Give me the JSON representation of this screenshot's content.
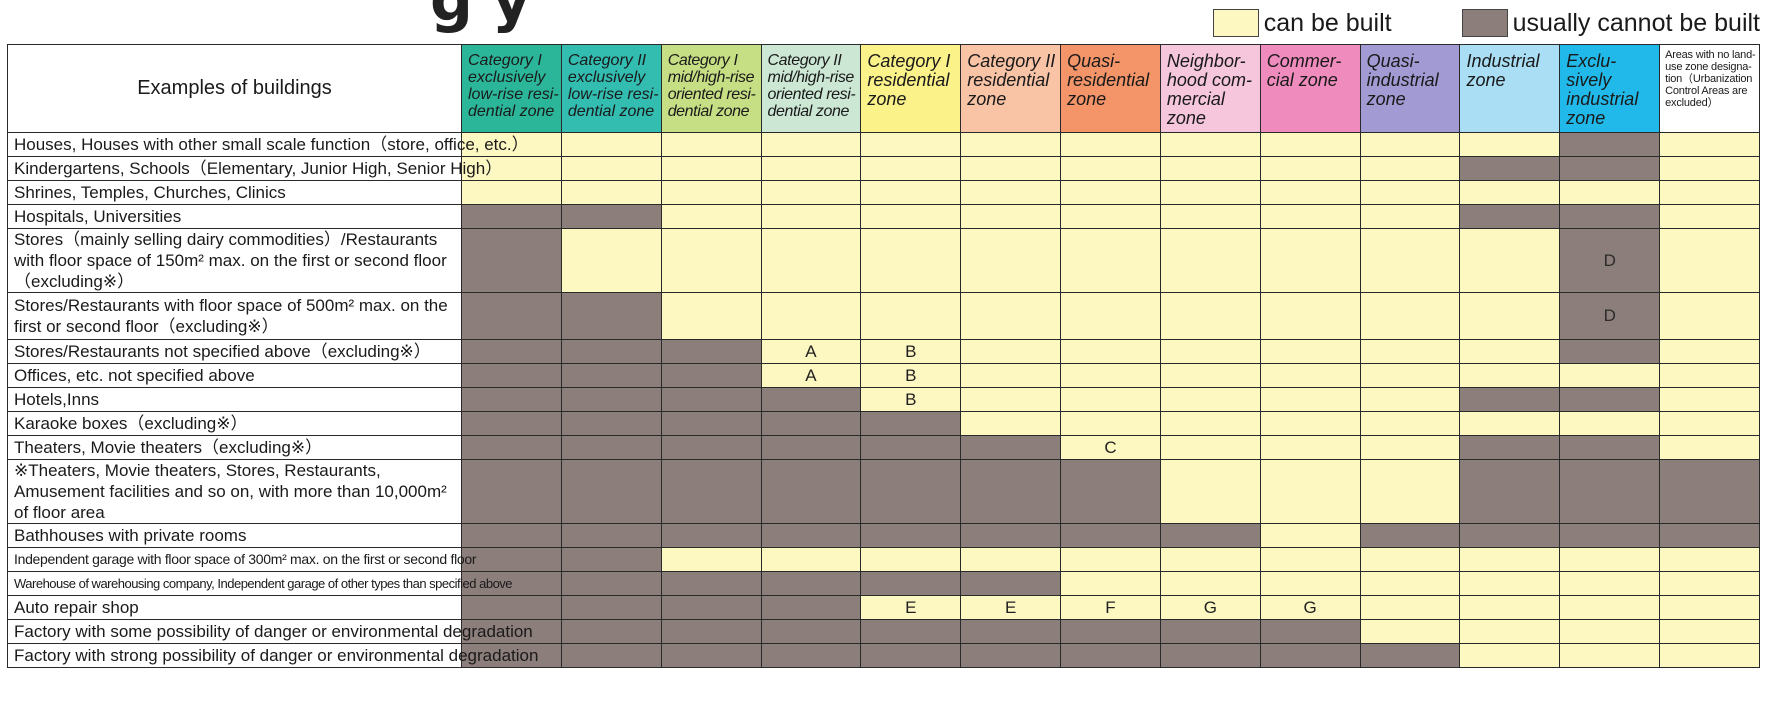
{
  "title_fragment": "g   y",
  "legend": [
    {
      "label": "can be built",
      "color": "#fdf7c1"
    },
    {
      "label": "usually cannot be built",
      "color": "#8c7e7a"
    }
  ],
  "chart_data": {
    "type": "table",
    "row_header": "Examples of buildings",
    "columns": [
      {
        "name": "Category I exclusively low-rise residential zone",
        "lines": [
          "Category I",
          "exclusively",
          "low-rise resi-",
          "dential zone"
        ],
        "color": "#2bb69a",
        "style": "normal"
      },
      {
        "name": "Category II exclusively low-rise residential zone",
        "lines": [
          "Category II",
          "exclusively",
          "low-rise resi-",
          "dential zone"
        ],
        "color": "#33bcb0",
        "style": "normal"
      },
      {
        "name": "Category I mid/high-rise oriented residential zone",
        "lines": [
          "Category I",
          "mid/high-rise",
          "oriented resi-",
          "dential zone"
        ],
        "color": "#c7df84",
        "style": "condensed"
      },
      {
        "name": "Category II mid/high-rise oriented residential zone",
        "lines": [
          "Category II",
          "mid/high-rise",
          "oriented resi-",
          "dential zone"
        ],
        "color": "#cce8d5",
        "style": "condensed"
      },
      {
        "name": "Category I residential zone",
        "lines": [
          "Category I",
          "residential",
          "zone"
        ],
        "color": "#fbf28a",
        "style": "large"
      },
      {
        "name": "Category II residential zone",
        "lines": [
          "Category II",
          "residential",
          "zone"
        ],
        "color": "#f9c3a6",
        "style": "large"
      },
      {
        "name": "Quasi-residential zone",
        "lines": [
          "Quasi-",
          "residential",
          "zone"
        ],
        "color": "#f39469",
        "style": "large"
      },
      {
        "name": "Neighborhood commercial zone",
        "lines": [
          "Neighbor-",
          "hood com-",
          "mercial",
          "zone"
        ],
        "color": "#f5c6dc",
        "style": "large"
      },
      {
        "name": "Commercial zone",
        "lines": [
          "Commer-",
          "cial zone"
        ],
        "color": "#ef8cbd",
        "style": "large"
      },
      {
        "name": "Quasi-industrial zone",
        "lines": [
          "Quasi-",
          "industrial",
          "zone"
        ],
        "color": "#a29ad2",
        "style": "large"
      },
      {
        "name": "Industrial zone",
        "lines": [
          "Industrial",
          "zone"
        ],
        "color": "#a9def5",
        "style": "large"
      },
      {
        "name": "Exclusively industrial zone",
        "lines": [
          "Exclu-",
          "sively",
          "industrial",
          "zone"
        ],
        "color": "#21b9ea",
        "style": "large"
      },
      {
        "name": "Areas with no land-use zone designation (Urbanization Control Areas are excluded)",
        "lines": [
          "Areas with no land-",
          "use zone designa-",
          "tion（Urbanization",
          "Control Areas are",
          "excluded）"
        ],
        "color": "#ffffff",
        "style": "tiny"
      }
    ],
    "rows": [
      {
        "label": "Houses, Houses with other small scale function（store, office, etc.）",
        "height": 24,
        "style": "normal",
        "status": [
          1,
          1,
          1,
          1,
          1,
          1,
          1,
          1,
          1,
          1,
          1,
          0,
          1
        ],
        "marks": [
          "",
          "",
          "",
          "",
          "",
          "",
          "",
          "",
          "",
          "",
          "",
          "",
          ""
        ]
      },
      {
        "label": "Kindergartens, Schools（Elementary, Junior High, Senior High）",
        "height": 24,
        "style": "normal",
        "status": [
          1,
          1,
          1,
          1,
          1,
          1,
          1,
          1,
          1,
          1,
          0,
          0,
          1
        ],
        "marks": [
          "",
          "",
          "",
          "",
          "",
          "",
          "",
          "",
          "",
          "",
          "",
          "",
          ""
        ]
      },
      {
        "label": "Shrines, Temples, Churches, Clinics",
        "height": 24,
        "style": "normal",
        "status": [
          1,
          1,
          1,
          1,
          1,
          1,
          1,
          1,
          1,
          1,
          1,
          1,
          1
        ],
        "marks": [
          "",
          "",
          "",
          "",
          "",
          "",
          "",
          "",
          "",
          "",
          "",
          "",
          ""
        ]
      },
      {
        "label": "Hospitals, Universities",
        "height": 24,
        "style": "normal",
        "status": [
          0,
          0,
          1,
          1,
          1,
          1,
          1,
          1,
          1,
          1,
          0,
          0,
          1
        ],
        "marks": [
          "",
          "",
          "",
          "",
          "",
          "",
          "",
          "",
          "",
          "",
          "",
          "",
          ""
        ]
      },
      {
        "label": "Stores（mainly selling dairy commodities）/Restaurants with floor space of 150m² max. on the first or second floor（excluding※）",
        "height": 47,
        "style": "wrap",
        "status": [
          0,
          1,
          1,
          1,
          1,
          1,
          1,
          1,
          1,
          1,
          1,
          0,
          1
        ],
        "marks": [
          "",
          "",
          "",
          "",
          "",
          "",
          "",
          "",
          "",
          "",
          "",
          "D",
          ""
        ]
      },
      {
        "label": "Stores/Restaurants with floor space of 500m² max. on the first or second floor（excluding※）",
        "height": 47,
        "style": "wrap",
        "status": [
          0,
          0,
          1,
          1,
          1,
          1,
          1,
          1,
          1,
          1,
          1,
          0,
          1
        ],
        "marks": [
          "",
          "",
          "",
          "",
          "",
          "",
          "",
          "",
          "",
          "",
          "",
          "D",
          ""
        ]
      },
      {
        "label": "Stores/Restaurants not specified above（excluding※）",
        "height": 24,
        "style": "normal",
        "status": [
          0,
          0,
          0,
          1,
          1,
          1,
          1,
          1,
          1,
          1,
          1,
          0,
          1
        ],
        "marks": [
          "",
          "",
          "",
          "A",
          "B",
          "",
          "",
          "",
          "",
          "",
          "",
          "",
          ""
        ]
      },
      {
        "label": "Offices, etc. not specified above",
        "height": 24,
        "style": "normal",
        "status": [
          0,
          0,
          0,
          1,
          1,
          1,
          1,
          1,
          1,
          1,
          1,
          1,
          1
        ],
        "marks": [
          "",
          "",
          "",
          "A",
          "B",
          "",
          "",
          "",
          "",
          "",
          "",
          "",
          ""
        ]
      },
      {
        "label": "Hotels,Inns",
        "height": 24,
        "style": "normal",
        "status": [
          0,
          0,
          0,
          0,
          1,
          1,
          1,
          1,
          1,
          1,
          0,
          0,
          1
        ],
        "marks": [
          "",
          "",
          "",
          "",
          "B",
          "",
          "",
          "",
          "",
          "",
          "",
          "",
          ""
        ]
      },
      {
        "label": "Karaoke boxes（excluding※）",
        "height": 24,
        "style": "normal",
        "status": [
          0,
          0,
          0,
          0,
          0,
          1,
          1,
          1,
          1,
          1,
          1,
          1,
          1
        ],
        "marks": [
          "",
          "",
          "",
          "",
          "",
          "",
          "",
          "",
          "",
          "",
          "",
          "",
          ""
        ]
      },
      {
        "label": "Theaters, Movie theaters（excluding※）",
        "height": 24,
        "style": "normal",
        "status": [
          0,
          0,
          0,
          0,
          0,
          0,
          1,
          1,
          1,
          1,
          0,
          0,
          1
        ],
        "marks": [
          "",
          "",
          "",
          "",
          "",
          "",
          "C",
          "",
          "",
          "",
          "",
          "",
          ""
        ]
      },
      {
        "label": "※Theaters, Movie theaters, Stores, Restaurants, Amusement facilities and so on, with more than 10,000m² of floor area",
        "height": 47,
        "style": "wrap",
        "status": [
          0,
          0,
          0,
          0,
          0,
          0,
          0,
          1,
          1,
          1,
          0,
          0,
          0
        ],
        "marks": [
          "",
          "",
          "",
          "",
          "",
          "",
          "",
          "",
          "",
          "",
          "",
          "",
          ""
        ]
      },
      {
        "label": "Bathhouses with private rooms",
        "height": 24,
        "style": "normal",
        "status": [
          0,
          0,
          0,
          0,
          0,
          0,
          0,
          0,
          1,
          0,
          0,
          0,
          0
        ],
        "marks": [
          "",
          "",
          "",
          "",
          "",
          "",
          "",
          "",
          "",
          "",
          "",
          "",
          ""
        ]
      },
      {
        "label": "Independent garage with floor space of 300m² max. on the first or second floor",
        "height": 24,
        "style": "small",
        "status": [
          0,
          0,
          1,
          1,
          1,
          1,
          1,
          1,
          1,
          1,
          1,
          1,
          1
        ],
        "marks": [
          "",
          "",
          "",
          "",
          "",
          "",
          "",
          "",
          "",
          "",
          "",
          "",
          ""
        ]
      },
      {
        "label": "Warehouse of warehousing company, Independent garage of other types than specified above",
        "height": 24,
        "style": "smaller",
        "status": [
          0,
          0,
          0,
          0,
          0,
          0,
          1,
          1,
          1,
          1,
          1,
          1,
          1
        ],
        "marks": [
          "",
          "",
          "",
          "",
          "",
          "",
          "",
          "",
          "",
          "",
          "",
          "",
          ""
        ]
      },
      {
        "label": "Auto repair shop",
        "height": 24,
        "style": "normal",
        "status": [
          0,
          0,
          0,
          0,
          1,
          1,
          1,
          1,
          1,
          1,
          1,
          1,
          1
        ],
        "marks": [
          "",
          "",
          "",
          "",
          "E",
          "E",
          "F",
          "G",
          "G",
          "",
          "",
          "",
          ""
        ]
      },
      {
        "label": "Factory with some possibility of danger or environmental degradation",
        "height": 24,
        "style": "normal",
        "status": [
          0,
          0,
          0,
          0,
          0,
          0,
          0,
          0,
          0,
          1,
          1,
          1,
          1
        ],
        "marks": [
          "",
          "",
          "",
          "",
          "",
          "",
          "",
          "",
          "",
          "",
          "",
          "",
          ""
        ]
      },
      {
        "label": "Factory with strong possibility of danger or environmental degradation",
        "height": 24,
        "style": "normal",
        "status": [
          0,
          0,
          0,
          0,
          0,
          0,
          0,
          0,
          0,
          0,
          1,
          1,
          1
        ],
        "marks": [
          "",
          "",
          "",
          "",
          "",
          "",
          "",
          "",
          "",
          "",
          "",
          "",
          ""
        ]
      }
    ]
  }
}
